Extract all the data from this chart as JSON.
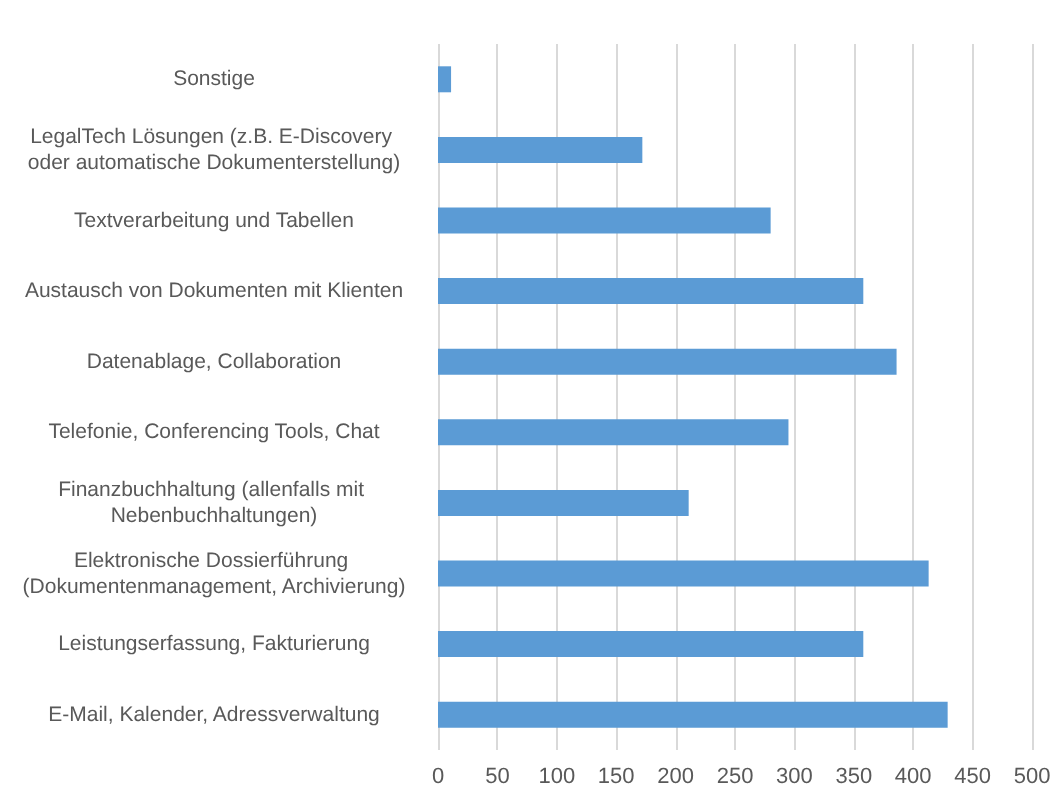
{
  "chart_data": {
    "type": "bar",
    "orientation": "horizontal",
    "categories": [
      "Sonstige",
      "LegalTech Lösungen (z.B. E-Discovery oder automatische Dokumenterstellung)",
      "Textverarbeitung und Tabellen",
      "Austausch von Dokumenten mit Klienten",
      "Datenablage, Collaboration",
      "Telefonie, Conferencing Tools, Chat",
      "Finanzbuchhaltung (allenfalls mit Nebenbuchhaltungen)",
      "Elektronische Dossierführung (Dokumentenmanagement, Archivierung)",
      "Leistungserfassung, Fakturierung",
      "E-Mail, Kalender, Adressverwaltung"
    ],
    "values": [
      11,
      172,
      280,
      358,
      386,
      295,
      211,
      413,
      358,
      429
    ],
    "color": "#5b9bd5",
    "xlim": [
      0,
      500
    ],
    "xticks": [
      0,
      50,
      100,
      150,
      200,
      250,
      300,
      350,
      400,
      450,
      500
    ],
    "grid": "x"
  }
}
